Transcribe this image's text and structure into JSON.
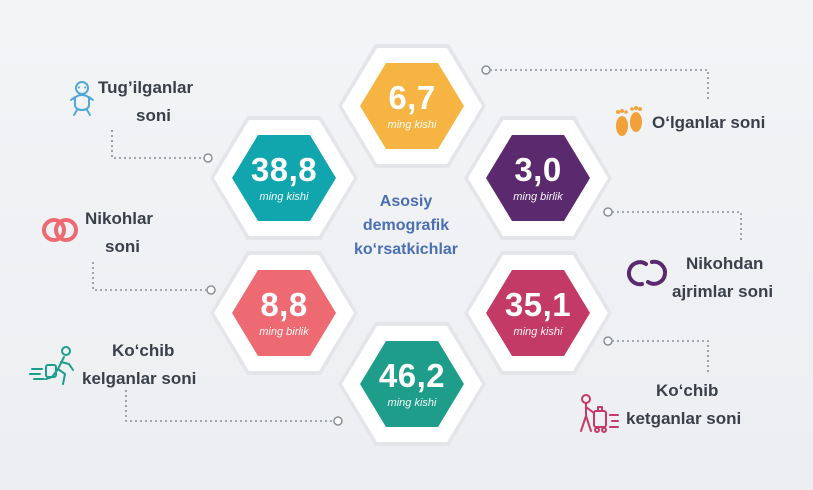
{
  "center_title": [
    "Asosiy",
    "demografik",
    "ko‘rsatkichlar"
  ],
  "hexagons": [
    {
      "id": "olganlar",
      "value": "6,7",
      "unit": "ming kishi",
      "color": "#f6b443"
    },
    {
      "id": "tugilganlar",
      "value": "38,8",
      "unit": "ming kishi",
      "color": "#11a6ae"
    },
    {
      "id": "nikohdan-ajrimlar",
      "value": "3,0",
      "unit": "ming birlik",
      "color": "#5b2a6e"
    },
    {
      "id": "nikohlar",
      "value": "8,8",
      "unit": "ming birlik",
      "color": "#ed6a72"
    },
    {
      "id": "kochib-ketganlar",
      "value": "35,1",
      "unit": "ming kishi",
      "color": "#c43a66"
    },
    {
      "id": "kochib-kelganlar",
      "value": "46,2",
      "unit": "ming kishi",
      "color": "#1e9e8a"
    }
  ],
  "labels": {
    "tugilganlar": [
      "Tug’ilganlar",
      "soni"
    ],
    "olganlar": [
      "O‘lganlar soni"
    ],
    "nikohlar": [
      "Nikohlar",
      "soni"
    ],
    "nikohdan_ajrimlar": [
      "Nikohdan",
      "ajrimlar soni"
    ],
    "kochib_kelganlar": [
      "Ko‘chib",
      "kelganlar  soni"
    ],
    "kochib_ketganlar": [
      "Ko‘chib",
      "ketganlar soni"
    ]
  },
  "icons": {
    "tugilganlar": "baby-icon",
    "olganlar": "footprints-icon",
    "nikohlar": "rings-icon",
    "nikohdan_ajrimlar": "broken-rings-icon",
    "kochib_kelganlar": "running-person-arriving-icon",
    "kochib_ketganlar": "person-with-luggage-leaving-icon"
  },
  "colors": {
    "icon_blue": "#4fa8d8",
    "icon_orange": "#f2a13a",
    "icon_coral": "#ed6a72",
    "icon_purple": "#5b2a6e",
    "icon_teal": "#1e9e8a",
    "icon_pink": "#c43a66",
    "connector": "#8a8f98",
    "title_blue": "#4a6fb3"
  }
}
